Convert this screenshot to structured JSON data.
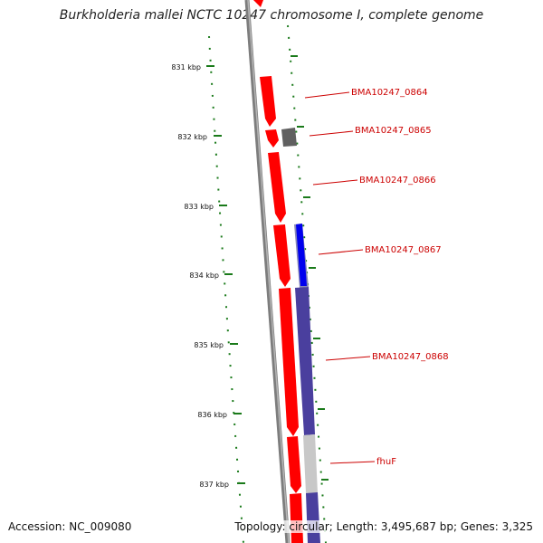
{
  "title": "Burkholderia mallei NCTC 10247 chromosome I, complete genome",
  "footer": {
    "accession": "Accession: NC_009080",
    "summary": "Topology: circular; Length: 3,495,687 bp; Genes: 3,325"
  },
  "colors": {
    "backbone": "#808080",
    "tick": "#1a7a1a",
    "forward_gene": "#ff0000",
    "reverse_gene": "#4a3f9e",
    "label": "#cc0000",
    "other_feature": "#606060",
    "region_highlight": "#c8c8c8",
    "blue_feature": "#0000ee"
  },
  "scale": {
    "unit": "kbp",
    "ticks": [
      "831 kbp",
      "832 kbp",
      "833 kbp",
      "834 kbp",
      "835 kbp",
      "836 kbp",
      "837 kbp"
    ]
  },
  "genes": [
    {
      "label": "BMA10247_0864",
      "strand": "forward"
    },
    {
      "label": "BMA10247_0865",
      "strand": "forward"
    },
    {
      "label": "BMA10247_0866",
      "strand": "forward"
    },
    {
      "label": "BMA10247_0867",
      "strand": "reverse"
    },
    {
      "label": "BMA10247_0868",
      "strand": "reverse"
    },
    {
      "label": "fhuF",
      "strand": "reverse"
    }
  ]
}
